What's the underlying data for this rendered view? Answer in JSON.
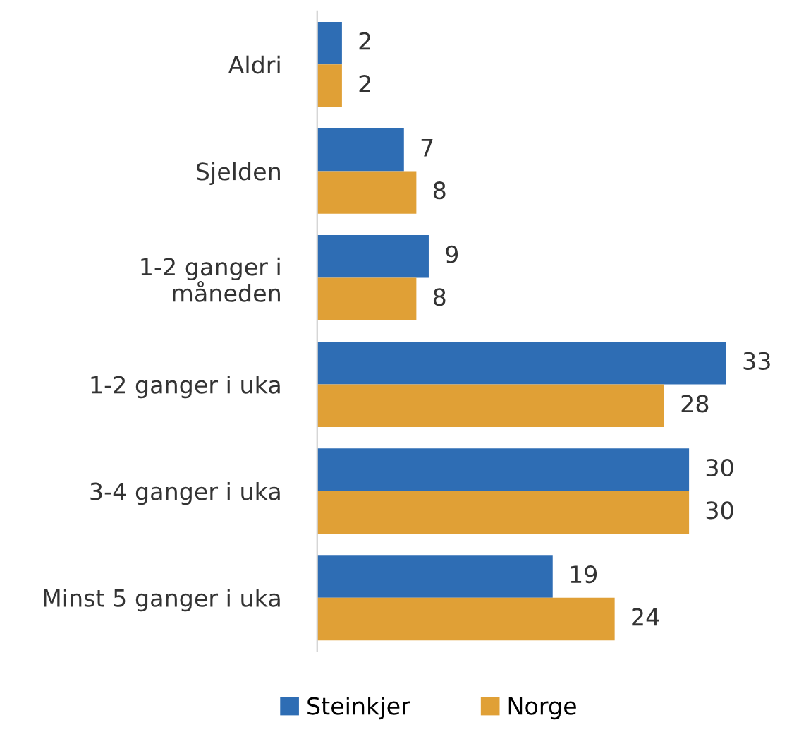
{
  "chart_data": {
    "type": "bar",
    "orientation": "horizontal",
    "categories": [
      "Aldri",
      "Sjelden",
      "1-2 ganger i\nmåneden",
      "1-2 ganger i uka",
      "3-4 ganger i uka",
      "Minst 5 ganger i uka"
    ],
    "series": [
      {
        "name": "Steinkjer",
        "color": "#2e6db4",
        "values": [
          2,
          7,
          9,
          33,
          30,
          19
        ]
      },
      {
        "name": "Norge",
        "color": "#e0a036",
        "values": [
          2,
          8,
          8,
          28,
          30,
          24
        ]
      }
    ],
    "data_labels": true,
    "legend": "bottom",
    "grid": false
  }
}
